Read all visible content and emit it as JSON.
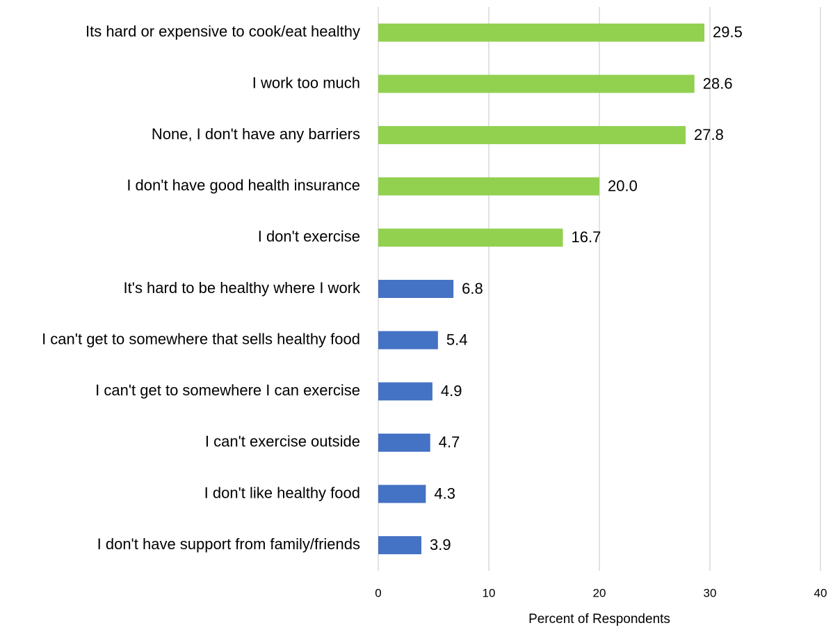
{
  "chart_data": {
    "type": "barh",
    "categories": [
      "Its hard or expensive to cook/eat healthy",
      "I work too much",
      "None, I don't have any barriers",
      "I don't have good health insurance",
      "I don't exercise",
      "It's hard to be healthy where I work",
      "I can't get to somewhere that sells healthy food",
      "I can't get to somewhere I can exercise",
      "I can't exercise outside",
      "I don't like healthy food",
      "I don't have support from family/friends"
    ],
    "values": [
      29.5,
      28.6,
      27.8,
      20.0,
      16.7,
      6.8,
      5.4,
      4.9,
      4.7,
      4.3,
      3.9
    ],
    "value_labels": [
      "29.5",
      "28.6",
      "27.8",
      "20.0",
      "16.7",
      "6.8",
      "5.4",
      "4.9",
      "4.7",
      "4.3",
      "3.9"
    ],
    "colors": [
      "#92d050",
      "#92d050",
      "#92d050",
      "#92d050",
      "#92d050",
      "#4472c4",
      "#4472c4",
      "#4472c4",
      "#4472c4",
      "#4472c4",
      "#4472c4"
    ],
    "xlabel": "Percent of Respondents",
    "xlim": [
      0,
      40
    ],
    "xticks": [
      0,
      10,
      20,
      30,
      40
    ],
    "grid": true
  }
}
